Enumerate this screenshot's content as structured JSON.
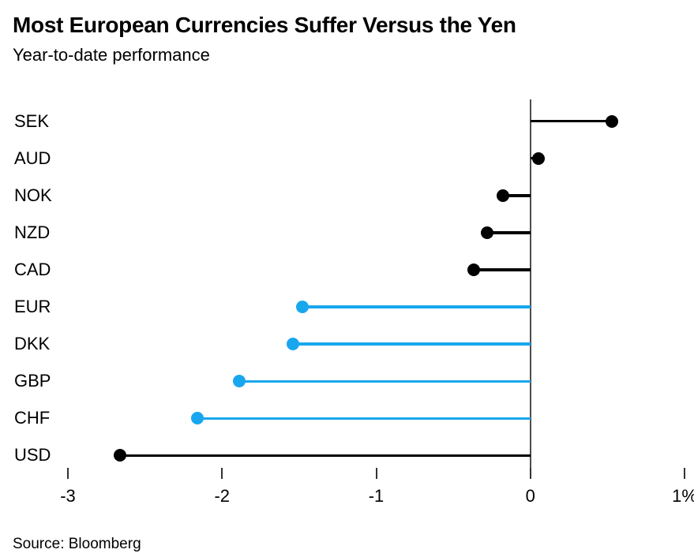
{
  "header": {
    "title": "Most European Currencies Suffer Versus the Yen",
    "subtitle": "Year-to-date performance"
  },
  "footer": {
    "source": "Source: Bloomberg"
  },
  "colors": {
    "positive_negative_default": "#000000",
    "european_highlight": "#18a7ee",
    "axis_line": "#4d4d4d",
    "tick": "#333333"
  },
  "chart_data": {
    "type": "bar",
    "style": "lollipop-horizontal",
    "title": "Most European Currencies Suffer Versus the Yen",
    "subtitle": "Year-to-date performance",
    "xlabel": "",
    "ylabel": "",
    "unit": "%",
    "grid": false,
    "legend": false,
    "xlim": [
      -3,
      1
    ],
    "categories": [
      "SEK",
      "AUD",
      "NOK",
      "NZD",
      "CAD",
      "EUR",
      "DKK",
      "GBP",
      "CHF",
      "USD"
    ],
    "values": [
      0.53,
      0.05,
      -0.18,
      -0.28,
      -0.37,
      -1.48,
      -1.54,
      -1.89,
      -2.16,
      -2.66
    ],
    "point_colors": [
      "#000000",
      "#000000",
      "#000000",
      "#000000",
      "#000000",
      "#18a7ee",
      "#18a7ee",
      "#18a7ee",
      "#18a7ee",
      "#000000"
    ],
    "xticks": [
      {
        "value": -3,
        "label": "-3"
      },
      {
        "value": -2,
        "label": "-2"
      },
      {
        "value": -1,
        "label": "-1"
      },
      {
        "value": 0,
        "label": "0"
      },
      {
        "value": 1,
        "label": "1%"
      }
    ],
    "source": "Source: Bloomberg"
  }
}
